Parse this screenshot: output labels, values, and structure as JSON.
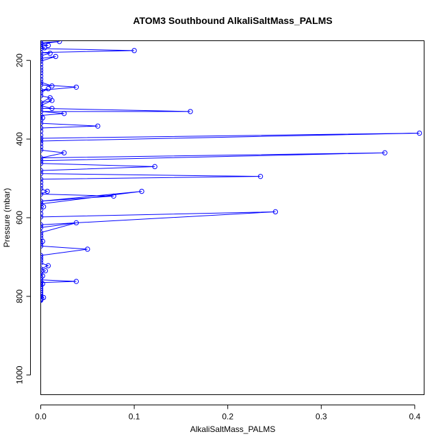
{
  "chart_data": {
    "type": "line",
    "title": "ATOM3 Southbound AlkaliSaltMass_PALMS",
    "xlabel": "AlkaliSaltMass_PALMS",
    "ylabel": "Pressure (mbar)",
    "xlim": [
      0,
      0.41
    ],
    "ylim": [
      1050,
      150
    ],
    "y_reversed": true,
    "grid": false,
    "x_ticks": [
      0.0,
      0.1,
      0.2,
      0.3,
      0.4
    ],
    "x_tick_labels": [
      "0.0",
      "0.1",
      "0.2",
      "0.3",
      "0.4"
    ],
    "y_ticks": [
      200,
      400,
      600,
      800,
      1000
    ],
    "y_tick_labels": [
      "200",
      "400",
      "600",
      "800",
      "1000"
    ],
    "series": [
      {
        "color": "#0000ff",
        "marker": "open-circle",
        "points": [
          [
            0.0,
            810
          ],
          [
            0.0,
            808
          ],
          [
            0.001,
            805
          ],
          [
            0.0,
            800
          ],
          [
            0.003,
            803
          ],
          [
            0.0,
            795
          ],
          [
            0.0,
            790
          ],
          [
            0.0,
            785
          ],
          [
            0.0,
            780
          ],
          [
            0.0,
            775
          ],
          [
            0.0,
            770
          ],
          [
            0.002,
            768
          ],
          [
            0.0,
            765
          ],
          [
            0.038,
            762
          ],
          [
            0.0,
            758
          ],
          [
            0.0,
            752
          ],
          [
            0.002,
            748
          ],
          [
            0.0,
            742
          ],
          [
            0.005,
            735
          ],
          [
            0.0,
            730
          ],
          [
            0.008,
            722
          ],
          [
            0.0,
            715
          ],
          [
            0.0,
            708
          ],
          [
            0.0,
            702
          ],
          [
            0.0,
            696
          ],
          [
            0.05,
            680
          ],
          [
            0.0,
            672
          ],
          [
            0.0,
            665
          ],
          [
            0.002,
            660
          ],
          [
            0.0,
            652
          ],
          [
            0.0,
            645
          ],
          [
            0.0,
            638
          ],
          [
            0.038,
            613
          ],
          [
            0.0,
            625
          ],
          [
            0.0,
            618
          ],
          [
            0.251,
            585
          ],
          [
            0.0,
            598
          ],
          [
            0.0,
            590
          ],
          [
            0.0,
            580
          ],
          [
            0.003,
            572
          ],
          [
            0.0,
            565
          ],
          [
            0.108,
            533
          ],
          [
            0.0,
            558
          ],
          [
            0.078,
            545
          ],
          [
            0.0,
            540
          ],
          [
            0.007,
            533
          ],
          [
            0.0,
            526
          ],
          [
            0.0,
            518
          ],
          [
            0.0,
            510
          ],
          [
            0.0,
            502
          ],
          [
            0.235,
            495
          ],
          [
            0.0,
            488
          ],
          [
            0.0,
            480
          ],
          [
            0.122,
            470
          ],
          [
            0.0,
            462
          ],
          [
            0.0,
            455
          ],
          [
            0.368,
            435
          ],
          [
            0.0,
            448
          ],
          [
            0.025,
            435
          ],
          [
            0.0,
            428
          ],
          [
            0.0,
            420
          ],
          [
            0.0,
            412
          ],
          [
            0.0,
            405
          ],
          [
            0.405,
            385
          ],
          [
            0.0,
            398
          ],
          [
            0.0,
            390
          ],
          [
            0.0,
            380
          ],
          [
            0.0,
            372
          ],
          [
            0.061,
            367
          ],
          [
            0.0,
            360
          ],
          [
            0.0,
            352
          ],
          [
            0.002,
            346
          ],
          [
            0.0,
            340
          ],
          [
            0.025,
            335
          ],
          [
            0.0,
            330
          ],
          [
            0.16,
            330
          ],
          [
            0.0,
            322
          ],
          [
            0.012,
            322
          ],
          [
            0.0,
            315
          ],
          [
            0.012,
            302
          ],
          [
            0.0,
            308
          ],
          [
            0.01,
            295
          ],
          [
            0.0,
            290
          ],
          [
            0.0,
            282
          ],
          [
            0.008,
            272
          ],
          [
            0.0,
            276
          ],
          [
            0.038,
            268
          ],
          [
            0.0,
            262
          ],
          [
            0.012,
            265
          ],
          [
            0.0,
            255
          ],
          [
            0.0,
            248
          ],
          [
            0.0,
            240
          ],
          [
            0.0,
            232
          ],
          [
            0.0,
            225
          ],
          [
            0.0,
            218
          ],
          [
            0.0,
            210
          ],
          [
            0.0,
            202
          ],
          [
            0.016,
            190
          ],
          [
            0.0,
            195
          ],
          [
            0.0,
            188
          ],
          [
            0.01,
            182
          ],
          [
            0.0,
            180
          ],
          [
            0.1,
            175
          ],
          [
            0.0,
            170
          ],
          [
            0.004,
            168
          ],
          [
            0.0,
            164
          ],
          [
            0.008,
            162
          ],
          [
            0.0,
            158
          ],
          [
            0.02,
            152
          ],
          [
            0.0,
            155
          ]
        ]
      }
    ]
  }
}
